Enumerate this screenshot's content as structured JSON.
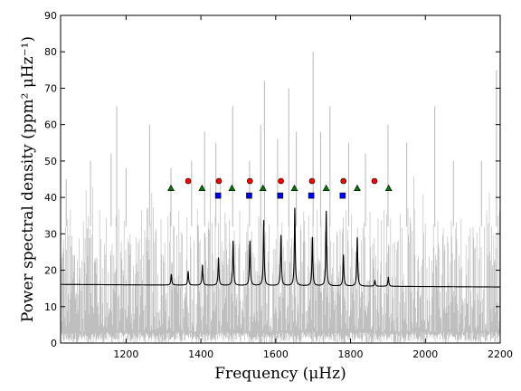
{
  "chart_data": {
    "type": "line",
    "xlabel": "Frequency (μHz)",
    "ylabel": "Power spectral density (ppm² μHz⁻¹)",
    "xlim": [
      1025,
      2200
    ],
    "ylim": [
      0,
      90
    ],
    "x_ticks": [
      1200,
      1400,
      1600,
      1800,
      2000,
      2200
    ],
    "y_ticks": [
      0,
      10,
      20,
      30,
      40,
      50,
      60,
      70,
      80,
      90
    ],
    "x_tick_labels": [
      "1200",
      "1400",
      "1600",
      "1800",
      "2000",
      "2200"
    ],
    "y_tick_labels": [
      "0",
      "10",
      "20",
      "30",
      "40",
      "50",
      "60",
      "70",
      "80",
      "90"
    ],
    "grid": false,
    "colors": {
      "noise": "#bfbfbf",
      "fit": "#000000",
      "triangle": "#007a00",
      "circle": "#ff0000",
      "square": "#0000ff"
    },
    "noise_spectrum": {
      "band_low": 3,
      "band_high": 38,
      "spikes": [
        {
          "x": 1040,
          "y": 45
        },
        {
          "x": 1105,
          "y": 50
        },
        {
          "x": 1160,
          "y": 52
        },
        {
          "x": 1175,
          "y": 65
        },
        {
          "x": 1200,
          "y": 48
        },
        {
          "x": 1263,
          "y": 60
        },
        {
          "x": 1320,
          "y": 48
        },
        {
          "x": 1375,
          "y": 50
        },
        {
          "x": 1410,
          "y": 58
        },
        {
          "x": 1440,
          "y": 55
        },
        {
          "x": 1485,
          "y": 65
        },
        {
          "x": 1530,
          "y": 50
        },
        {
          "x": 1560,
          "y": 60
        },
        {
          "x": 1570,
          "y": 72
        },
        {
          "x": 1605,
          "y": 56
        },
        {
          "x": 1635,
          "y": 70
        },
        {
          "x": 1655,
          "y": 58
        },
        {
          "x": 1700,
          "y": 80
        },
        {
          "x": 1720,
          "y": 58
        },
        {
          "x": 1745,
          "y": 65
        },
        {
          "x": 1795,
          "y": 55
        },
        {
          "x": 1840,
          "y": 52
        },
        {
          "x": 1900,
          "y": 60
        },
        {
          "x": 1950,
          "y": 55
        },
        {
          "x": 2025,
          "y": 65
        },
        {
          "x": 2075,
          "y": 50
        },
        {
          "x": 2150,
          "y": 50
        },
        {
          "x": 2190,
          "y": 75
        }
      ]
    },
    "fit_model": {
      "background": {
        "start": 16.1,
        "end": 15.4
      },
      "peaks": [
        {
          "x": 1321,
          "height": 3.0
        },
        {
          "x": 1366,
          "height": 3.8
        },
        {
          "x": 1404,
          "height": 5.6
        },
        {
          "x": 1447,
          "height": 7.6
        },
        {
          "x": 1486,
          "height": 12.3
        },
        {
          "x": 1531,
          "height": 12.2
        },
        {
          "x": 1568,
          "height": 18.2
        },
        {
          "x": 1614,
          "height": 14.0
        },
        {
          "x": 1651,
          "height": 21.4
        },
        {
          "x": 1698,
          "height": 13.5
        },
        {
          "x": 1735,
          "height": 20.6
        },
        {
          "x": 1781,
          "height": 8.6
        },
        {
          "x": 1818,
          "height": 13.5
        },
        {
          "x": 1865,
          "height": 1.5
        },
        {
          "x": 1901,
          "height": 2.6
        }
      ]
    },
    "series": [
      {
        "marker": "triangle",
        "x": [
          1320,
          1403,
          1483,
          1566,
          1650,
          1735,
          1818,
          1902
        ],
        "y": [
          42.5,
          42.5,
          42.5,
          42.5,
          42.5,
          42.5,
          42.5,
          42.5
        ]
      },
      {
        "marker": "circle",
        "x": [
          1366,
          1448,
          1531,
          1614,
          1697,
          1781,
          1864
        ],
        "y": [
          44.5,
          44.5,
          44.5,
          44.5,
          44.5,
          44.5,
          44.5
        ]
      },
      {
        "marker": "square",
        "x": [
          1446,
          1529,
          1612,
          1695,
          1779
        ],
        "y": [
          40.5,
          40.5,
          40.5,
          40.5,
          40.5
        ]
      }
    ]
  }
}
